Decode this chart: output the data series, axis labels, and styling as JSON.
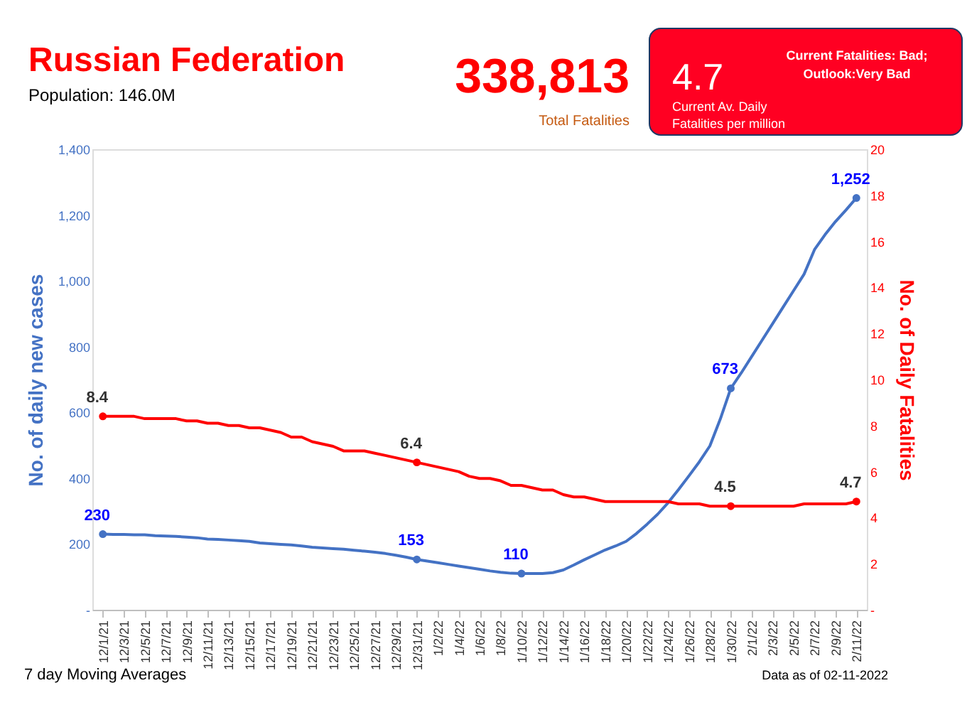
{
  "chart_data": {
    "type": "line",
    "title": "Russian Federation",
    "subtitle": "Population: 146.0M",
    "categories": [
      "12/1/21",
      null,
      "12/3/21",
      null,
      "12/5/21",
      null,
      "12/7/21",
      null,
      "12/9/21",
      null,
      "12/11/21",
      null,
      "12/13/21",
      null,
      "12/15/21",
      null,
      "12/17/21",
      null,
      "12/19/21",
      null,
      "12/21/21",
      null,
      "12/23/21",
      null,
      "12/25/21",
      null,
      "12/27/21",
      null,
      "12/29/21",
      null,
      "12/31/21",
      null,
      "1/2/22",
      null,
      "1/4/22",
      null,
      "1/6/22",
      null,
      "1/8/22",
      null,
      "1/10/22",
      null,
      "1/12/22",
      null,
      "1/14/22",
      null,
      "1/16/22",
      null,
      "1/18/22",
      null,
      "1/20/22",
      null,
      "1/22/22",
      null,
      "1/24/22",
      null,
      "1/26/22",
      null,
      "1/28/22",
      null,
      "1/30/22",
      null,
      "2/1/22",
      null,
      "2/3/22",
      null,
      "2/5/22",
      null,
      "2/7/22",
      null,
      "2/9/22",
      null,
      "2/11/22"
    ],
    "series": [
      {
        "color": "#4472c4",
        "values": [
          230,
          229,
          229,
          228,
          228,
          225,
          224,
          223,
          221,
          219,
          215,
          214,
          212,
          210,
          208,
          203,
          201,
          199,
          197,
          194,
          190,
          188,
          186,
          184,
          181,
          178,
          175,
          171,
          166,
          160,
          153,
          148,
          143,
          138,
          133,
          128,
          123,
          118,
          114,
          111,
          110,
          110,
          110,
          113,
          121,
          136,
          152,
          167,
          182,
          194,
          208,
          232,
          260,
          290,
          325,
          365,
          407,
          450,
          498,
          580,
          673,
          720,
          770,
          820,
          870,
          920,
          970,
          1020,
          1095,
          1140,
          1180,
          1215,
          1252
        ],
        "value_labels": [
          "230",
          null,
          null,
          null,
          null,
          null,
          null,
          null,
          null,
          null,
          null,
          null,
          null,
          null,
          null,
          null,
          null,
          null,
          null,
          null,
          null,
          null,
          null,
          null,
          null,
          null,
          null,
          null,
          null,
          null,
          "153",
          null,
          null,
          null,
          null,
          null,
          null,
          null,
          null,
          null,
          "110",
          null,
          null,
          null,
          null,
          null,
          null,
          null,
          null,
          null,
          null,
          null,
          null,
          null,
          null,
          null,
          null,
          null,
          null,
          null,
          "673",
          null,
          null,
          null,
          null,
          null,
          null,
          null,
          null,
          null,
          null,
          null,
          "1,252"
        ]
      },
      {
        "color": "#ff0000",
        "axis": "y2",
        "values": [
          8.4,
          8.4,
          8.4,
          8.4,
          8.3,
          8.3,
          8.3,
          8.3,
          8.2,
          8.2,
          8.1,
          8.1,
          8.0,
          8.0,
          7.9,
          7.9,
          7.8,
          7.7,
          7.5,
          7.5,
          7.3,
          7.2,
          7.1,
          6.9,
          6.9,
          6.9,
          6.8,
          6.7,
          6.6,
          6.5,
          6.4,
          6.3,
          6.2,
          6.1,
          6.0,
          5.8,
          5.7,
          5.7,
          5.6,
          5.4,
          5.4,
          5.3,
          5.2,
          5.2,
          5.0,
          4.9,
          4.9,
          4.8,
          4.7,
          4.7,
          4.7,
          4.7,
          4.7,
          4.7,
          4.7,
          4.6,
          4.6,
          4.6,
          4.5,
          4.5,
          4.5,
          4.5,
          4.5,
          4.5,
          4.5,
          4.5,
          4.5,
          4.6,
          4.6,
          4.6,
          4.6,
          4.6,
          4.7
        ],
        "value_labels": [
          "8.4",
          null,
          null,
          null,
          null,
          null,
          null,
          null,
          null,
          null,
          null,
          null,
          null,
          null,
          null,
          null,
          null,
          null,
          null,
          null,
          null,
          null,
          null,
          null,
          null,
          null,
          null,
          null,
          null,
          null,
          "6.4",
          null,
          null,
          null,
          null,
          null,
          null,
          null,
          null,
          null,
          null,
          null,
          null,
          null,
          null,
          null,
          null,
          null,
          null,
          null,
          null,
          null,
          null,
          null,
          null,
          null,
          null,
          null,
          null,
          null,
          "4.5",
          null,
          null,
          null,
          null,
          null,
          null,
          null,
          null,
          null,
          null,
          null,
          "4.7"
        ]
      }
    ],
    "ylim": [
      0,
      1400
    ],
    "yticks": [
      {
        "value": 0,
        "label": "-"
      },
      200,
      400,
      600,
      800,
      {
        "value": 1000,
        "label": "1,000"
      },
      {
        "value": 1200,
        "label": "1,200"
      },
      {
        "value": 1400,
        "label": "1,400"
      }
    ],
    "y2lim": [
      0,
      20
    ],
    "y2ticks": [
      {
        "value": 0,
        "label": "-"
      },
      2,
      4,
      6,
      8,
      10,
      12,
      14,
      16,
      18,
      20
    ],
    "ylabel": "No. of daily new  cases",
    "y2label": "No. of Daily Fatalities",
    "grid": false,
    "annotations": [
      "338,813",
      "Total Fatalities",
      "4.7",
      "Current Av. Daily",
      "Fatalities per million",
      "Current Fatalities: Bad;",
      "Outlook:Very Bad",
      "7 day Moving Averages",
      "Data as of 02-11-2022"
    ]
  }
}
